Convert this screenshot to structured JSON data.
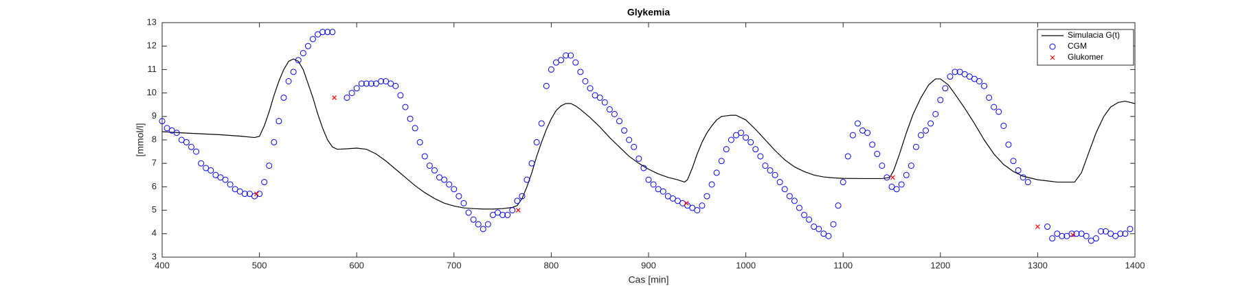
{
  "chart_data": {
    "type": "line",
    "title": "Glykemia",
    "xlabel": "Cas [min]",
    "ylabel": "[mmol/l]",
    "xlim": [
      400,
      1400
    ],
    "ylim": [
      3,
      13
    ],
    "xticks": [
      400,
      500,
      600,
      700,
      800,
      900,
      1000,
      1100,
      1200,
      1300,
      1400
    ],
    "yticks": [
      3,
      4,
      5,
      6,
      7,
      8,
      9,
      10,
      11,
      12,
      13
    ],
    "legend": "northeast",
    "series": [
      {
        "name": "Simulacia G(t)",
        "color": "#000000",
        "style": "line",
        "x": [
          400,
          420,
          440,
          460,
          480,
          495,
          500,
          505,
          510,
          515,
          520,
          525,
          530,
          535,
          540,
          545,
          550,
          555,
          560,
          565,
          570,
          575,
          580,
          590,
          600,
          610,
          620,
          630,
          640,
          650,
          660,
          670,
          680,
          690,
          700,
          710,
          720,
          730,
          740,
          750,
          760,
          765,
          770,
          775,
          780,
          785,
          790,
          795,
          800,
          805,
          810,
          815,
          820,
          825,
          830,
          840,
          850,
          860,
          870,
          880,
          890,
          900,
          910,
          920,
          930,
          937,
          940,
          945,
          950,
          955,
          960,
          965,
          970,
          975,
          985,
          990,
          1000,
          1010,
          1020,
          1030,
          1040,
          1050,
          1060,
          1070,
          1080,
          1090,
          1100,
          1120,
          1140,
          1148,
          1152,
          1158,
          1165,
          1172,
          1180,
          1188,
          1195,
          1200,
          1208,
          1215,
          1225,
          1235,
          1245,
          1255,
          1265,
          1275,
          1285,
          1300,
          1320,
          1338,
          1345,
          1352,
          1360,
          1368,
          1375,
          1383,
          1390,
          1395,
          1400
        ],
        "values": [
          8.35,
          8.3,
          8.26,
          8.22,
          8.16,
          8.1,
          8.15,
          8.6,
          9.2,
          9.9,
          10.5,
          11.0,
          11.35,
          11.45,
          11.35,
          11.0,
          10.4,
          9.8,
          9.1,
          8.5,
          8.0,
          7.7,
          7.6,
          7.62,
          7.65,
          7.6,
          7.4,
          7.1,
          6.75,
          6.4,
          6.05,
          5.75,
          5.5,
          5.3,
          5.18,
          5.1,
          5.07,
          5.05,
          5.05,
          5.07,
          5.12,
          5.2,
          5.5,
          6.0,
          6.6,
          7.3,
          7.9,
          8.45,
          8.9,
          9.25,
          9.45,
          9.55,
          9.55,
          9.45,
          9.3,
          8.95,
          8.55,
          8.1,
          7.7,
          7.3,
          7.0,
          6.75,
          6.55,
          6.4,
          6.3,
          6.2,
          6.3,
          6.8,
          7.4,
          7.9,
          8.3,
          8.6,
          8.85,
          9.0,
          9.05,
          9.05,
          8.85,
          8.45,
          8.0,
          7.55,
          7.15,
          6.85,
          6.65,
          6.5,
          6.42,
          6.38,
          6.36,
          6.35,
          6.35,
          6.4,
          6.7,
          7.4,
          8.3,
          9.1,
          9.8,
          10.35,
          10.6,
          10.6,
          10.35,
          9.95,
          9.35,
          8.7,
          8.0,
          7.4,
          6.95,
          6.65,
          6.45,
          6.3,
          6.2,
          6.2,
          6.6,
          7.4,
          8.3,
          9.0,
          9.4,
          9.6,
          9.65,
          9.6,
          9.55
        ]
      },
      {
        "name": "CGM",
        "color": "#0000ff",
        "style": "o",
        "x": [
          400,
          405,
          410,
          415,
          420,
          425,
          430,
          435,
          440,
          445,
          450,
          455,
          460,
          465,
          470,
          475,
          480,
          485,
          490,
          495,
          500,
          505,
          510,
          515,
          520,
          525,
          530,
          535,
          540,
          545,
          550,
          555,
          560,
          565,
          570,
          575,
          590,
          595,
          600,
          605,
          610,
          615,
          620,
          625,
          630,
          635,
          640,
          645,
          650,
          655,
          660,
          665,
          670,
          675,
          680,
          685,
          690,
          695,
          700,
          705,
          710,
          715,
          720,
          725,
          730,
          735,
          740,
          745,
          750,
          755,
          760,
          765,
          770,
          775,
          780,
          785,
          790,
          795,
          800,
          805,
          810,
          815,
          820,
          825,
          830,
          835,
          840,
          845,
          850,
          855,
          860,
          865,
          870,
          875,
          880,
          885,
          890,
          895,
          900,
          905,
          910,
          915,
          920,
          925,
          930,
          935,
          940,
          945,
          950,
          955,
          960,
          965,
          970,
          975,
          980,
          985,
          990,
          995,
          1000,
          1005,
          1010,
          1015,
          1020,
          1025,
          1030,
          1035,
          1040,
          1045,
          1050,
          1055,
          1060,
          1065,
          1070,
          1075,
          1080,
          1085,
          1090,
          1095,
          1100,
          1105,
          1110,
          1115,
          1120,
          1125,
          1130,
          1135,
          1140,
          1145,
          1150,
          1155,
          1160,
          1165,
          1170,
          1175,
          1180,
          1185,
          1190,
          1195,
          1200,
          1205,
          1210,
          1215,
          1220,
          1225,
          1230,
          1235,
          1240,
          1245,
          1250,
          1255,
          1260,
          1265,
          1270,
          1275,
          1280,
          1285,
          1290,
          1310,
          1315,
          1320,
          1325,
          1330,
          1335,
          1340,
          1345,
          1350,
          1355,
          1360,
          1365,
          1370,
          1375,
          1380,
          1385,
          1390,
          1395
        ],
        "values": [
          8.8,
          8.5,
          8.4,
          8.3,
          8.0,
          7.9,
          7.7,
          7.5,
          7.0,
          6.8,
          6.7,
          6.5,
          6.4,
          6.3,
          6.1,
          5.9,
          5.8,
          5.7,
          5.7,
          5.6,
          5.7,
          6.2,
          6.9,
          7.9,
          8.8,
          9.8,
          10.5,
          10.9,
          11.4,
          11.7,
          12.0,
          12.3,
          12.5,
          12.6,
          12.6,
          12.6,
          9.8,
          10.0,
          10.2,
          10.4,
          10.4,
          10.4,
          10.4,
          10.5,
          10.5,
          10.4,
          10.3,
          9.9,
          9.4,
          8.9,
          8.5,
          7.9,
          7.3,
          6.9,
          6.7,
          6.4,
          6.3,
          6.1,
          5.9,
          5.6,
          5.3,
          4.9,
          4.6,
          4.4,
          4.2,
          4.4,
          4.8,
          4.9,
          4.8,
          4.8,
          5.0,
          5.4,
          5.6,
          6.3,
          7.0,
          7.9,
          8.7,
          10.3,
          11.0,
          11.3,
          11.4,
          11.6,
          11.6,
          11.3,
          10.9,
          10.5,
          10.2,
          9.9,
          9.8,
          9.6,
          9.3,
          9.1,
          8.8,
          8.4,
          8.0,
          7.7,
          7.2,
          6.8,
          6.3,
          6.1,
          5.9,
          5.8,
          5.6,
          5.5,
          5.4,
          5.3,
          5.2,
          5.1,
          5.0,
          5.2,
          5.6,
          6.1,
          6.6,
          7.1,
          7.6,
          8.0,
          8.2,
          8.3,
          8.1,
          7.9,
          7.6,
          7.3,
          6.9,
          6.7,
          6.5,
          6.2,
          5.9,
          5.6,
          5.4,
          5.1,
          4.8,
          4.6,
          4.3,
          4.2,
          4.0,
          3.9,
          4.4,
          5.2,
          6.2,
          7.3,
          8.2,
          8.7,
          8.4,
          8.3,
          7.8,
          7.4,
          6.9,
          6.4,
          6.0,
          5.9,
          6.1,
          6.5,
          6.9,
          7.7,
          8.2,
          8.4,
          8.7,
          9.1,
          9.7,
          10.2,
          10.7,
          10.9,
          10.9,
          10.8,
          10.7,
          10.6,
          10.5,
          10.3,
          9.8,
          9.4,
          9.2,
          8.6,
          7.8,
          7.1,
          6.7,
          6.4,
          6.2,
          4.3,
          3.8,
          4.0,
          3.9,
          3.9,
          4.0,
          4.0,
          4.0,
          3.9,
          3.7,
          3.8,
          4.1,
          4.1,
          4.0,
          3.9,
          4.0,
          4.0,
          4.2
        ]
      },
      {
        "name": "Glukomer",
        "color": "#ff0000",
        "style": "x",
        "x": [
          497,
          577,
          766,
          939,
          1151,
          1300,
          1336
        ],
        "values": [
          5.7,
          9.8,
          5.0,
          5.3,
          6.4,
          4.3,
          3.95
        ]
      }
    ]
  }
}
